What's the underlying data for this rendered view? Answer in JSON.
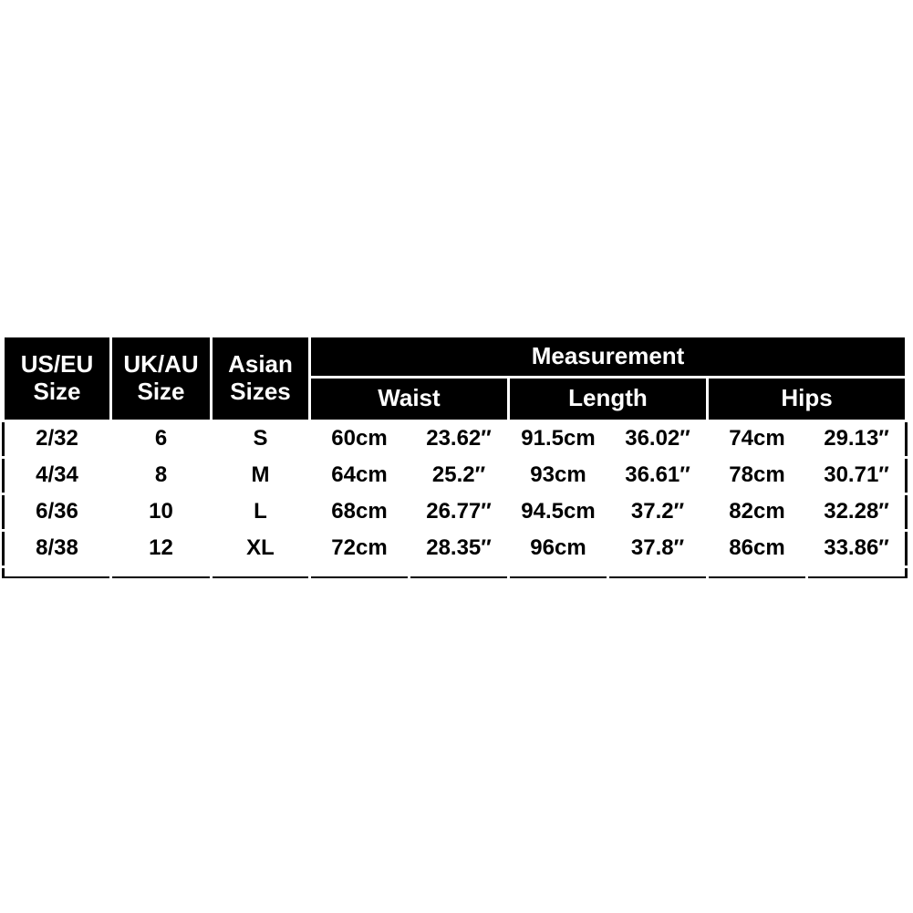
{
  "table": {
    "type": "table",
    "colors": {
      "header_bg": "#000000",
      "header_fg": "#ffffff",
      "body_bg": "#ffffff",
      "body_fg": "#000000",
      "body_border": "#000000",
      "header_border": "#ffffff"
    },
    "fonts": {
      "header_size_pt": 20,
      "body_size_pt": 18,
      "weight": "bold",
      "family": "Arial"
    },
    "headers": {
      "us_eu_line1": "US/EU",
      "us_eu_line2": "Size",
      "uk_au_line1": "UK/AU",
      "uk_au_line2": "Size",
      "asian_line1": "Asian",
      "asian_line2": "Sizes",
      "measurement": "Measurement",
      "waist": "Waist",
      "length": "Length",
      "hips": "Hips"
    },
    "rows": [
      {
        "us_eu": "2/32",
        "uk_au": "6",
        "asian": "S",
        "waist_cm": "60cm",
        "waist_in": "23.62″",
        "length_cm": "91.5cm",
        "length_in": "36.02″",
        "hips_cm": "74cm",
        "hips_in": "29.13″"
      },
      {
        "us_eu": "4/34",
        "uk_au": "8",
        "asian": "M",
        "waist_cm": "64cm",
        "waist_in": "25.2″",
        "length_cm": "93cm",
        "length_in": "36.61″",
        "hips_cm": "78cm",
        "hips_in": "30.71″"
      },
      {
        "us_eu": "6/36",
        "uk_au": "10",
        "asian": "L",
        "waist_cm": "68cm",
        "waist_in": "26.77″",
        "length_cm": "94.5cm",
        "length_in": "37.2″",
        "hips_cm": "82cm",
        "hips_in": "32.28″"
      },
      {
        "us_eu": "8/38",
        "uk_au": "12",
        "asian": "XL",
        "waist_cm": "72cm",
        "waist_in": "28.35″",
        "length_cm": "96cm",
        "length_in": "37.8″",
        "hips_cm": "86cm",
        "hips_in": "33.86″"
      }
    ]
  }
}
